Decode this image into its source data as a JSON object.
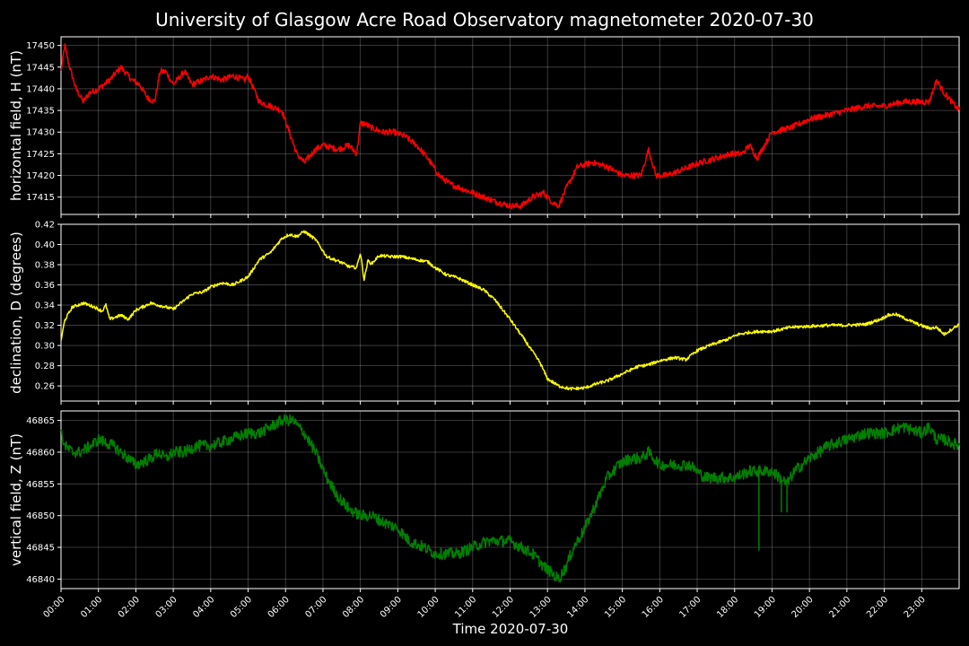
{
  "page": {
    "title": "University of Glasgow Acre Road Observatory magnetometer 2020-07-30",
    "xlabel": "Time 2020-07-30"
  },
  "chart_data": [
    {
      "type": "line",
      "ylabel": "horizontal field, H (nT)",
      "color": "#ff0000",
      "noise": 0.7,
      "ylim": [
        17411,
        17452
      ],
      "yticks": [
        17415,
        17420,
        17425,
        17430,
        17435,
        17440,
        17445,
        17450
      ],
      "xlim": [
        0,
        24
      ],
      "x": [
        0,
        0.1,
        0.2,
        0.4,
        0.6,
        0.75,
        1.0,
        1.3,
        1.6,
        1.9,
        2.1,
        2.3,
        2.5,
        2.65,
        2.8,
        3.0,
        3.3,
        3.5,
        3.8,
        4.0,
        4.3,
        4.6,
        4.9,
        5.0,
        5.1,
        5.3,
        5.6,
        5.9,
        6.1,
        6.3,
        6.5,
        6.8,
        7.0,
        7.4,
        7.7,
        7.9,
        8.0,
        8.1,
        8.3,
        8.6,
        8.9,
        9.2,
        9.5,
        9.8,
        10.1,
        10.4,
        10.7,
        11.0,
        11.3,
        11.6,
        12.0,
        12.3,
        12.6,
        12.9,
        13.1,
        13.3,
        13.5,
        13.8,
        14.2,
        14.6,
        15.0,
        15.3,
        15.5,
        15.7,
        15.9,
        16.2,
        16.5,
        16.8,
        17.1,
        17.5,
        17.9,
        18.2,
        18.4,
        18.6,
        19.0,
        19.5,
        20.0,
        20.5,
        21.0,
        21.5,
        22.0,
        22.5,
        23.0,
        23.2,
        23.4,
        23.6,
        23.8,
        24.0
      ],
      "y": [
        17444,
        17450,
        17446,
        17440,
        17437,
        17439,
        17440,
        17442,
        17445,
        17442,
        17441,
        17438,
        17437,
        17444,
        17444,
        17441,
        17444,
        17441,
        17442,
        17443,
        17442,
        17443,
        17442,
        17443,
        17441,
        17437,
        17436,
        17435,
        17430,
        17425,
        17423,
        17426,
        17427,
        17426,
        17427,
        17425,
        17432,
        17432,
        17431,
        17430,
        17430,
        17429,
        17427,
        17424,
        17420,
        17418,
        17417,
        17416,
        17415,
        17414,
        17413,
        17413,
        17415,
        17416,
        17414,
        17413,
        17417,
        17422,
        17423,
        17422,
        17420,
        17420,
        17420,
        17426,
        17420,
        17420,
        17421,
        17422,
        17423,
        17424,
        17425,
        17425,
        17427,
        17424,
        17430,
        17431,
        17433,
        17434,
        17435,
        17436,
        17436,
        17437,
        17437,
        17437,
        17442,
        17439,
        17437,
        17435
      ]
    },
    {
      "type": "line",
      "ylabel": "declination, D (degrees)",
      "color": "#ffff00",
      "noise": 0.0015,
      "ylim": [
        0.245,
        0.42
      ],
      "yticks": [
        0.26,
        0.28,
        0.3,
        0.32,
        0.34,
        0.36,
        0.38,
        0.4,
        0.42
      ],
      "xlim": [
        0,
        24
      ],
      "x": [
        0,
        0.1,
        0.3,
        0.6,
        0.9,
        1.1,
        1.2,
        1.3,
        1.6,
        1.8,
        2.0,
        2.4,
        2.8,
        3.0,
        3.2,
        3.5,
        3.8,
        4.0,
        4.3,
        4.6,
        5.0,
        5.3,
        5.6,
        5.9,
        6.1,
        6.3,
        6.5,
        6.8,
        7.1,
        7.5,
        7.7,
        7.9,
        8.0,
        8.1,
        8.2,
        8.3,
        8.5,
        8.8,
        9.1,
        9.5,
        9.8,
        10.0,
        10.3,
        10.6,
        11.0,
        11.3,
        11.6,
        12.0,
        12.4,
        12.8,
        13.0,
        13.3,
        13.6,
        14.0,
        14.3,
        14.6,
        15.0,
        15.4,
        15.7,
        16.0,
        16.4,
        16.7,
        17.0,
        17.4,
        17.8,
        18.1,
        18.4,
        18.7,
        19.0,
        19.5,
        20.0,
        20.5,
        21.0,
        21.5,
        21.9,
        22.1,
        22.3,
        22.6,
        22.9,
        23.2,
        23.4,
        23.6,
        23.8,
        24.0
      ],
      "y": [
        0.305,
        0.325,
        0.338,
        0.342,
        0.338,
        0.334,
        0.34,
        0.326,
        0.33,
        0.326,
        0.335,
        0.342,
        0.338,
        0.336,
        0.342,
        0.351,
        0.353,
        0.358,
        0.362,
        0.36,
        0.368,
        0.385,
        0.392,
        0.406,
        0.41,
        0.408,
        0.413,
        0.405,
        0.388,
        0.382,
        0.378,
        0.377,
        0.392,
        0.365,
        0.384,
        0.381,
        0.389,
        0.388,
        0.388,
        0.385,
        0.383,
        0.377,
        0.37,
        0.367,
        0.36,
        0.355,
        0.345,
        0.326,
        0.305,
        0.283,
        0.267,
        0.26,
        0.257,
        0.258,
        0.262,
        0.265,
        0.272,
        0.279,
        0.281,
        0.285,
        0.288,
        0.286,
        0.295,
        0.301,
        0.306,
        0.311,
        0.313,
        0.314,
        0.314,
        0.318,
        0.319,
        0.32,
        0.32,
        0.321,
        0.326,
        0.33,
        0.331,
        0.326,
        0.321,
        0.317,
        0.318,
        0.311,
        0.316,
        0.321
      ]
    },
    {
      "type": "line",
      "ylabel": "vertical field, Z (nT)",
      "color": "#008000",
      "noise": 0.9,
      "ylim": [
        46838.5,
        46866.5
      ],
      "yticks": [
        46840,
        46845,
        46850,
        46855,
        46860,
        46865
      ],
      "xlim": [
        0,
        24
      ],
      "x": [
        0,
        0.1,
        0.3,
        0.5,
        0.8,
        1.0,
        1.4,
        1.8,
        2.0,
        2.4,
        2.6,
        2.8,
        3.0,
        3.3,
        3.6,
        4.0,
        4.5,
        5.0,
        5.3,
        5.6,
        5.9,
        6.2,
        6.5,
        6.8,
        7.1,
        7.4,
        7.7,
        8.0,
        8.3,
        8.6,
        9.0,
        9.3,
        9.7,
        10.0,
        10.3,
        10.6,
        11.0,
        11.4,
        11.8,
        12.0,
        12.3,
        12.6,
        12.9,
        13.1,
        13.3,
        13.5,
        13.7,
        14.0,
        14.3,
        14.6,
        14.9,
        15.2,
        15.5,
        15.7,
        16.0,
        16.4,
        16.8,
        17.2,
        17.6,
        18.0,
        18.4,
        18.6,
        18.8,
        19.0,
        19.2,
        19.4,
        19.6,
        20.0,
        20.5,
        21.0,
        21.5,
        22.0,
        22.5,
        23.0,
        23.2,
        23.4,
        23.6,
        24.0
      ],
      "y": [
        46863,
        46861,
        46860,
        46860,
        46861,
        46862,
        46861,
        46859,
        46858,
        46859,
        46860,
        46859,
        46860,
        46860,
        46861,
        46861,
        46862,
        46863,
        46863,
        46864,
        46865,
        46865,
        46863,
        46860,
        46856,
        46853,
        46851,
        46850,
        46850,
        46849,
        46848,
        46846,
        46845,
        46844,
        46844,
        46844,
        46845,
        46846,
        46846,
        46846,
        46845,
        46844,
        46842,
        46841,
        46840,
        46842,
        46845,
        46848,
        46852,
        46856,
        46858,
        46859,
        46859,
        46860,
        46858,
        46858,
        46858,
        46856,
        46856,
        46856,
        46857,
        46857,
        46857,
        46857,
        46856,
        46855,
        46857,
        46859,
        46861,
        46862,
        46863,
        46863,
        46864,
        46863,
        46864,
        46862,
        46862,
        46861
      ],
      "spikes": [
        {
          "x": 18.65,
          "y": 46844.5
        },
        {
          "x": 19.25,
          "y": 46850.5
        },
        {
          "x": 19.4,
          "y": 46850.5
        }
      ]
    }
  ],
  "x_ticks": [
    "00:00",
    "01:00",
    "02:00",
    "03:00",
    "04:00",
    "05:00",
    "06:00",
    "07:00",
    "08:00",
    "09:00",
    "10:00",
    "11:00",
    "12:00",
    "13:00",
    "14:00",
    "15:00",
    "16:00",
    "17:00",
    "18:00",
    "19:00",
    "20:00",
    "21:00",
    "22:00",
    "23:00"
  ],
  "grid": true
}
